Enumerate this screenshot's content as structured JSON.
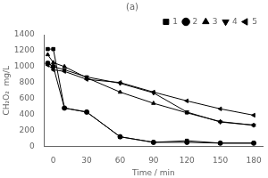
{
  "chart_data": {
    "type": "line",
    "title": "(a)",
    "xlabel": "Time / min",
    "ylabel": "CH₂O₂  mg/L",
    "x": [
      -5,
      0,
      10,
      30,
      60,
      90,
      120,
      150,
      180
    ],
    "series": [
      {
        "name": "1",
        "marker": "square",
        "values": [
          1220,
          1220,
          480,
          430,
          120,
          50,
          70,
          40,
          40
        ]
      },
      {
        "name": "2",
        "marker": "circle",
        "values": [
          1040,
          1000,
          480,
          430,
          120,
          50,
          50,
          40,
          40
        ]
      },
      {
        "name": "3",
        "marker": "triangle-up",
        "values": [
          1150,
          1050,
          1000,
          860,
          680,
          540,
          420,
          310,
          265
        ]
      },
      {
        "name": "4",
        "marker": "triangle-down",
        "values": [
          1050,
          1000,
          960,
          870,
          790,
          670,
          430,
          305,
          265
        ]
      },
      {
        "name": "5",
        "marker": "triangle-left",
        "values": [
          1020,
          960,
          940,
          840,
          800,
          680,
          570,
          470,
          390
        ]
      }
    ],
    "color": "#000000",
    "xlim": [
      -8,
      188
    ],
    "xticks": [
      0,
      30,
      60,
      90,
      120,
      150,
      180
    ],
    "ylim": [
      0,
      1400
    ],
    "yticks": [
      0,
      200,
      400,
      600,
      800,
      1000,
      1200,
      1400
    ],
    "grid": false,
    "legend": "upper right"
  }
}
